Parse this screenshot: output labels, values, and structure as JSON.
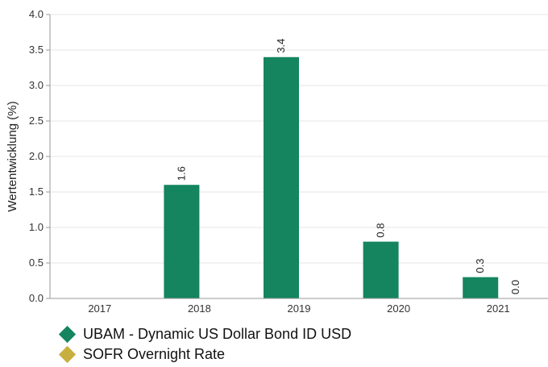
{
  "chart_data": {
    "type": "bar",
    "categories": [
      "2017",
      "2018",
      "2019",
      "2020",
      "2021"
    ],
    "series": [
      {
        "name": "UBAM - Dynamic US Dollar Bond ID USD",
        "color": "#14855f",
        "values": [
          null,
          1.6,
          3.4,
          0.8,
          0.3
        ]
      },
      {
        "name": "SOFR Overnight Rate",
        "color": "#c8b040",
        "values": [
          null,
          null,
          null,
          null,
          0.0
        ]
      }
    ],
    "data_labels": [
      [
        "",
        "1.6",
        "3.4",
        "0.8",
        "0.3"
      ],
      [
        "",
        "",
        "",
        "",
        "0.0"
      ]
    ],
    "title": "",
    "xlabel": "",
    "ylabel": "Wertentwicklung (%)",
    "ylim": [
      0,
      4.0
    ],
    "yticks": [
      "0.0",
      "0.5",
      "1.0",
      "1.5",
      "2.0",
      "2.5",
      "3.0",
      "3.5",
      "4.0"
    ],
    "grid": true,
    "legend_position": "bottom-left"
  }
}
